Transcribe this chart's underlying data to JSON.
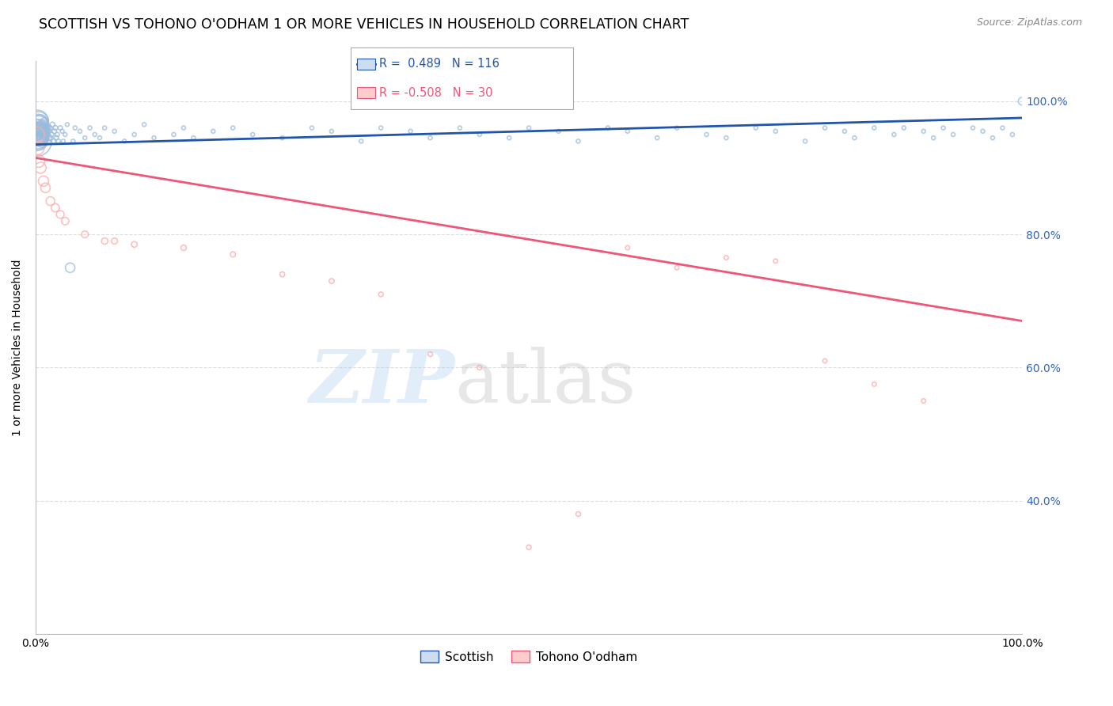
{
  "title": "SCOTTISH VS TOHONO O'ODHAM 1 OR MORE VEHICLES IN HOUSEHOLD CORRELATION CHART",
  "source": "Source: ZipAtlas.com",
  "ylabel": "1 or more Vehicles in Household",
  "legend_r_blue": "R =  0.489",
  "legend_n_blue": "N = 116",
  "legend_r_pink": "R = -0.508",
  "legend_n_pink": "N = 30",
  "legend_label_blue": "Scottish",
  "legend_label_pink": "Tohono O'odham",
  "blue_color": "#99BBDD",
  "pink_color": "#FFAAAA",
  "trendline_blue_color": "#2255AA",
  "trendline_pink_color": "#EE5577",
  "background_color": "#FFFFFF",
  "scottish_x": [
    0.1,
    0.15,
    0.2,
    0.2,
    0.25,
    0.25,
    0.3,
    0.3,
    0.35,
    0.4,
    0.4,
    0.45,
    0.5,
    0.5,
    0.55,
    0.6,
    0.6,
    0.65,
    0.7,
    0.7,
    0.75,
    0.8,
    0.85,
    0.9,
    0.9,
    0.95,
    1.0,
    1.0,
    1.1,
    1.2,
    1.2,
    1.3,
    1.4,
    1.5,
    1.6,
    1.7,
    1.8,
    1.9,
    2.0,
    2.1,
    2.2,
    2.3,
    2.5,
    2.7,
    2.8,
    3.0,
    3.2,
    3.5,
    3.8,
    4.0,
    4.5,
    5.0,
    5.5,
    6.0,
    6.5,
    7.0,
    8.0,
    9.0,
    10.0,
    11.0,
    12.0,
    14.0,
    15.0,
    16.0,
    18.0,
    20.0,
    22.0,
    25.0,
    28.0,
    30.0,
    33.0,
    35.0,
    38.0,
    40.0,
    43.0,
    45.0,
    48.0,
    50.0,
    53.0,
    55.0,
    58.0,
    60.0,
    63.0,
    65.0,
    68.0,
    70.0,
    73.0,
    75.0,
    78.0,
    80.0,
    82.0,
    83.0,
    85.0,
    87.0,
    88.0,
    90.0,
    91.0,
    92.0,
    93.0,
    95.0,
    96.0,
    97.0,
    98.0,
    99.0,
    100.0,
    0.08,
    0.12,
    0.18,
    0.22,
    0.28,
    0.32,
    0.38,
    0.42,
    0.48,
    0.52,
    0.58
  ],
  "scottish_y": [
    94.0,
    96.0,
    95.0,
    97.0,
    94.5,
    96.5,
    95.0,
    97.0,
    94.0,
    96.0,
    95.0,
    94.5,
    96.0,
    97.0,
    95.5,
    94.0,
    96.0,
    95.5,
    94.5,
    96.5,
    95.0,
    96.0,
    94.5,
    95.5,
    97.0,
    95.0,
    96.0,
    94.5,
    95.5,
    96.0,
    94.0,
    95.5,
    96.0,
    94.5,
    95.0,
    96.5,
    94.0,
    95.5,
    96.0,
    94.5,
    95.0,
    94.0,
    96.0,
    95.5,
    94.0,
    95.0,
    96.5,
    75.0,
    94.0,
    96.0,
    95.5,
    94.5,
    96.0,
    95.0,
    94.5,
    96.0,
    95.5,
    94.0,
    95.0,
    96.5,
    94.5,
    95.0,
    96.0,
    94.5,
    95.5,
    96.0,
    95.0,
    94.5,
    96.0,
    95.5,
    94.0,
    96.0,
    95.5,
    94.5,
    96.0,
    95.0,
    94.5,
    96.0,
    95.5,
    94.0,
    96.0,
    95.5,
    94.5,
    96.0,
    95.0,
    94.5,
    96.0,
    95.5,
    94.0,
    96.0,
    95.5,
    94.5,
    96.0,
    95.0,
    96.0,
    95.5,
    94.5,
    96.0,
    95.0,
    96.0,
    95.5,
    94.5,
    96.0,
    95.0,
    100.0,
    94.0,
    96.0,
    95.5,
    94.5,
    96.0,
    95.0,
    94.5,
    96.0,
    95.5,
    94.0,
    96.0
  ],
  "scottish_size": [
    300,
    200,
    180,
    160,
    150,
    140,
    130,
    120,
    100,
    90,
    80,
    70,
    60,
    55,
    50,
    45,
    42,
    38,
    35,
    32,
    28,
    25,
    22,
    20,
    18,
    16,
    15,
    14,
    13,
    12,
    11,
    10,
    10,
    9,
    8,
    8,
    7,
    7,
    7,
    6,
    6,
    6,
    6,
    5,
    5,
    5,
    5,
    30,
    5,
    5,
    5,
    5,
    5,
    5,
    5,
    5,
    5,
    5,
    5,
    5,
    5,
    5,
    5,
    5,
    5,
    5,
    5,
    5,
    5,
    5,
    5,
    5,
    5,
    5,
    5,
    5,
    5,
    5,
    5,
    5,
    5,
    5,
    5,
    5,
    5,
    5,
    5,
    5,
    5,
    5,
    5,
    5,
    5,
    5,
    5,
    5,
    5,
    5,
    5,
    5,
    5,
    5,
    5,
    5,
    20,
    120,
    100,
    80,
    60,
    50,
    40,
    35,
    28,
    22,
    18,
    14
  ],
  "tohono_x": [
    0.1,
    0.2,
    0.3,
    0.5,
    0.8,
    1.0,
    1.5,
    2.0,
    2.5,
    3.0,
    5.0,
    7.0,
    8.0,
    10.0,
    15.0,
    20.0,
    25.0,
    30.0,
    35.0,
    40.0,
    45.0,
    50.0,
    55.0,
    60.0,
    65.0,
    70.0,
    75.0,
    80.0,
    85.0,
    90.0
  ],
  "tohono_y": [
    95.0,
    93.0,
    91.0,
    90.0,
    88.0,
    87.0,
    85.0,
    84.0,
    83.0,
    82.0,
    80.0,
    79.0,
    79.0,
    78.5,
    78.0,
    77.0,
    74.0,
    73.0,
    71.0,
    62.0,
    60.0,
    33.0,
    38.0,
    78.0,
    75.0,
    76.5,
    76.0,
    61.0,
    57.5,
    55.0
  ],
  "tohono_size": [
    80,
    60,
    50,
    40,
    35,
    30,
    25,
    22,
    20,
    18,
    15,
    13,
    12,
    11,
    10,
    9,
    8,
    8,
    7,
    7,
    7,
    7,
    7,
    6,
    6,
    6,
    6,
    6,
    6,
    6
  ],
  "blue_trendline_x": [
    0.0,
    100.0
  ],
  "blue_trendline_y": [
    93.5,
    97.5
  ],
  "pink_trendline_x": [
    0.0,
    100.0
  ],
  "pink_trendline_y": [
    91.5,
    67.0
  ],
  "xlim": [
    0.0,
    100.0
  ],
  "ylim": [
    20.0,
    106.0
  ],
  "yticks": [
    40.0,
    60.0,
    80.0,
    100.0
  ],
  "xticks": [
    0.0,
    100.0
  ],
  "grid_color": "#DDDDDD",
  "title_fontsize": 12.5,
  "axis_label_fontsize": 10,
  "tick_fontsize": 10,
  "source_fontsize": 9
}
